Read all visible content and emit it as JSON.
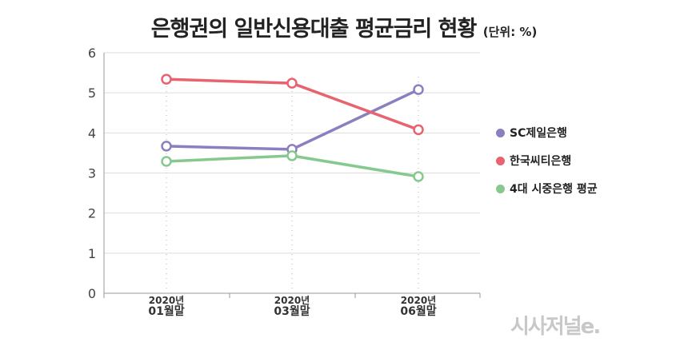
{
  "chart_data": {
    "type": "line",
    "title": "은행권의 일반신용대출 평균금리 현황",
    "unit": "(단위: %)",
    "categories": [
      [
        "2020년",
        "01월말"
      ],
      [
        "2020년",
        "03월말"
      ],
      [
        "2020년",
        "06월말"
      ]
    ],
    "ylim": [
      0,
      6
    ],
    "yticks": [
      "0",
      "1",
      "2",
      "3",
      "4",
      "5",
      "6"
    ],
    "grid": true,
    "legend_position": "right",
    "series": [
      {
        "name": "SC제일은행",
        "color": "#8b7fbf",
        "values": [
          3.67,
          3.59,
          5.08
        ]
      },
      {
        "name": "한국씨티은행",
        "color": "#e8636f",
        "values": [
          5.34,
          5.24,
          4.08
        ]
      },
      {
        "name": "4대 시중은행 평균",
        "color": "#86c98f",
        "values": [
          3.29,
          3.43,
          2.91
        ]
      }
    ]
  },
  "logo": "시사저널e."
}
